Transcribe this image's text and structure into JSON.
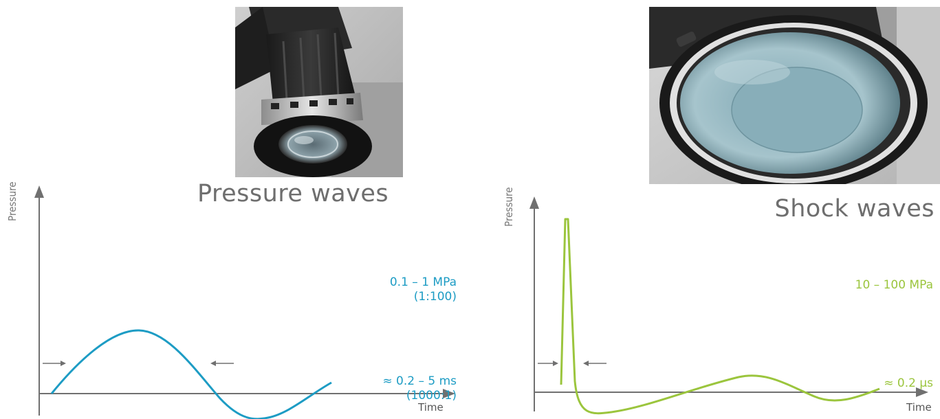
{
  "left_panel": {
    "title": "Pressure waves",
    "y_axis_label": "Pressure",
    "x_axis_label": "Time",
    "amplitude_line1": "0.1 – 1 MPa",
    "amplitude_line2": "(1:100)",
    "duration_line1": "≈ 0.2 – 5 ms",
    "duration_line2": "(1000:1)",
    "curve_color": "#1d9cc4",
    "photo_icon": "radial-pressure-wave-applicator-photo"
  },
  "right_panel": {
    "title": "Shock waves",
    "y_axis_label": "Pressure",
    "x_axis_label": "Time",
    "amplitude_line1": "10 – 100 MPa",
    "duration_line1": "≈ 0.2 µs",
    "curve_color": "#9bc53d",
    "photo_icon": "focused-shock-wave-applicator-photo"
  },
  "axis_color": "#707070"
}
